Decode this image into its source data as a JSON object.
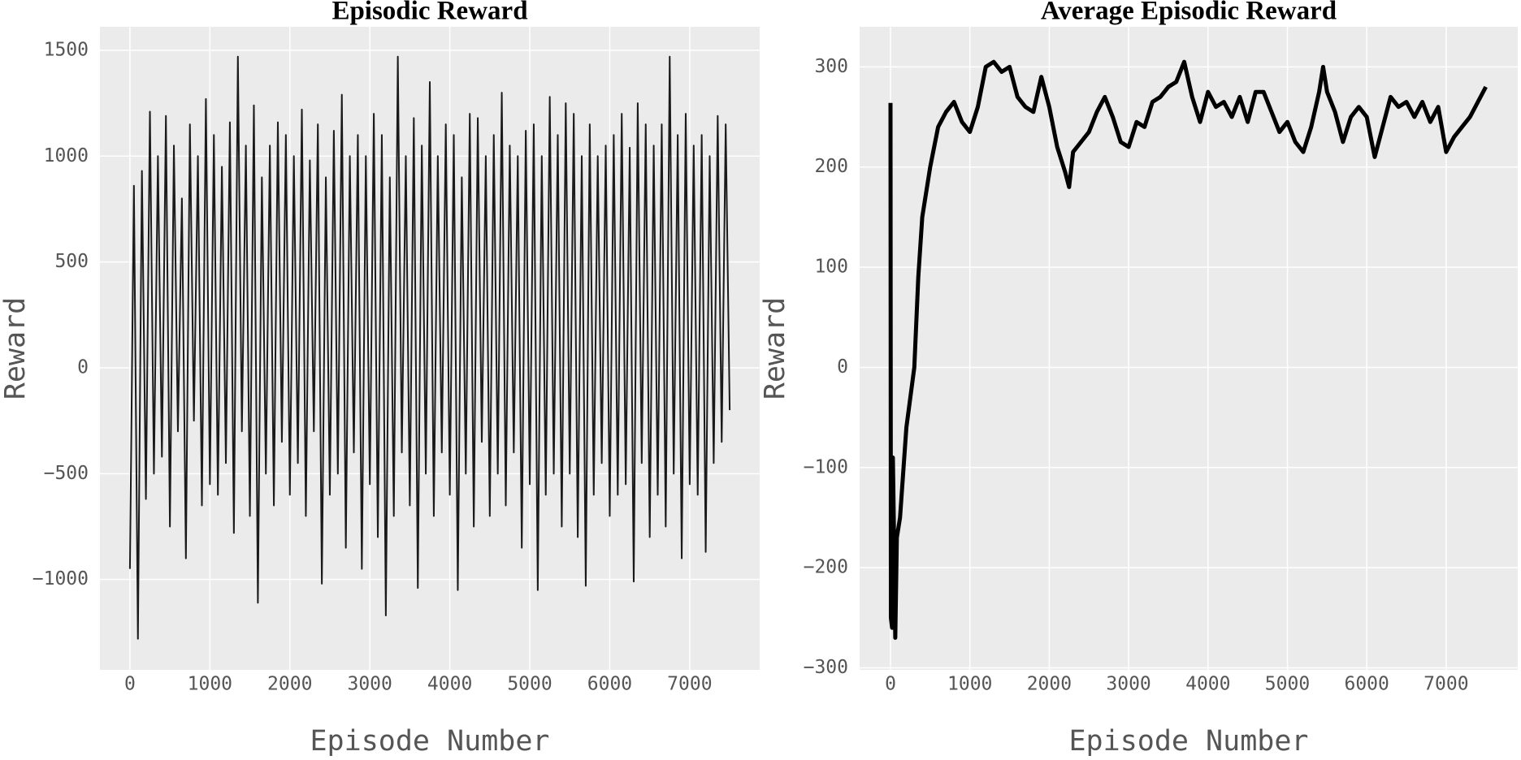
{
  "chart_data": [
    {
      "type": "line",
      "title": "Episodic Reward",
      "x_label": "Episode Number",
      "y_label": "Reward",
      "color": "#1a1a1a",
      "linewidth": 2,
      "grid": true,
      "xlim": [
        -375,
        7875
      ],
      "ylim": [
        -1427,
        1611
      ],
      "xticks": [
        0,
        1000,
        2000,
        3000,
        4000,
        5000,
        6000,
        7000
      ],
      "yticks": [
        {
          "value": -1000,
          "label": "−1000"
        },
        {
          "value": -500,
          "label": "−500"
        },
        0,
        500,
        1000,
        1500
      ],
      "x": [
        0,
        50,
        100,
        150,
        200,
        250,
        300,
        350,
        400,
        450,
        500,
        550,
        600,
        650,
        700,
        750,
        800,
        850,
        900,
        950,
        1000,
        1050,
        1100,
        1150,
        1200,
        1250,
        1300,
        1350,
        1400,
        1450,
        1500,
        1550,
        1600,
        1650,
        1700,
        1750,
        1800,
        1850,
        1900,
        1950,
        2000,
        2050,
        2100,
        2150,
        2200,
        2250,
        2300,
        2350,
        2400,
        2450,
        2500,
        2550,
        2600,
        2650,
        2700,
        2750,
        2800,
        2850,
        2900,
        2950,
        3000,
        3050,
        3100,
        3150,
        3200,
        3250,
        3300,
        3350,
        3400,
        3450,
        3500,
        3550,
        3600,
        3650,
        3700,
        3750,
        3800,
        3850,
        3900,
        3950,
        4000,
        4050,
        4100,
        4150,
        4200,
        4250,
        4300,
        4350,
        4400,
        4450,
        4500,
        4550,
        4600,
        4650,
        4700,
        4750,
        4800,
        4850,
        4900,
        4950,
        5000,
        5050,
        5100,
        5150,
        5200,
        5250,
        5300,
        5350,
        5400,
        5450,
        5500,
        5550,
        5600,
        5650,
        5700,
        5750,
        5800,
        5850,
        5900,
        5950,
        6000,
        6050,
        6100,
        6150,
        6200,
        6250,
        6300,
        6350,
        6400,
        6450,
        6500,
        6550,
        6600,
        6650,
        6700,
        6750,
        6800,
        6850,
        6900,
        6950,
        7000,
        7050,
        7100,
        7150,
        7200,
        7250,
        7300,
        7350,
        7400,
        7450,
        7500
      ],
      "values": [
        -950,
        860,
        -1280,
        930,
        -620,
        1210,
        -500,
        1000,
        -420,
        1190,
        -750,
        1050,
        -300,
        800,
        -900,
        1150,
        -250,
        1000,
        -650,
        1270,
        -550,
        1100,
        -600,
        950,
        -450,
        1160,
        -780,
        1470,
        -300,
        1050,
        -700,
        1240,
        -1110,
        900,
        -500,
        1050,
        -650,
        1160,
        -350,
        1100,
        -600,
        1000,
        -450,
        1220,
        -700,
        980,
        -300,
        1150,
        -1020,
        900,
        -600,
        1120,
        -500,
        1290,
        -850,
        1000,
        -400,
        1100,
        -950,
        1000,
        -550,
        1200,
        -800,
        1100,
        -1170,
        900,
        -700,
        1470,
        -400,
        1000,
        -650,
        1180,
        -1040,
        1050,
        -500,
        1350,
        -700,
        1000,
        -400,
        1150,
        -600,
        1100,
        -1050,
        900,
        -500,
        1200,
        -750,
        1180,
        -350,
        1000,
        -700,
        1100,
        -500,
        1300,
        -650,
        1050,
        -400,
        1000,
        -850,
        1120,
        -550,
        1150,
        -1050,
        1000,
        -600,
        1280,
        -500,
        1100,
        -750,
        1250,
        -500,
        1200,
        -800,
        1000,
        -1030,
        1150,
        -600,
        1000,
        -450,
        1050,
        -700,
        1100,
        -600,
        1200,
        -550,
        1040,
        -1010,
        1250,
        -450,
        1150,
        -800,
        1050,
        -600,
        1150,
        -750,
        1470,
        -500,
        1100,
        -900,
        1200,
        -550,
        1050,
        -600,
        1100,
        -870,
        1000,
        -450,
        1190,
        -350,
        1150,
        -200
      ]
    },
    {
      "type": "line",
      "title": "Average Episodic Reward",
      "x_label": "Episode Number",
      "y_label": "Reward",
      "color": "#000000",
      "linewidth": 5,
      "grid": true,
      "xlim": [
        -389,
        7902
      ],
      "ylim": [
        -302,
        340
      ],
      "xticks": [
        0,
        1000,
        2000,
        3000,
        4000,
        5000,
        6000,
        7000
      ],
      "yticks": [
        {
          "value": -300,
          "label": "−300"
        },
        {
          "value": -200,
          "label": "−200"
        },
        {
          "value": -100,
          "label": "−100"
        },
        0,
        100,
        200,
        300
      ],
      "x": [
        0,
        5,
        20,
        30,
        50,
        60,
        80,
        120,
        200,
        300,
        350,
        400,
        500,
        600,
        700,
        800,
        900,
        1000,
        1100,
        1200,
        1300,
        1400,
        1500,
        1600,
        1700,
        1800,
        1900,
        2000,
        2100,
        2200,
        2250,
        2300,
        2400,
        2500,
        2600,
        2700,
        2800,
        2900,
        3000,
        3100,
        3200,
        3300,
        3400,
        3500,
        3600,
        3700,
        3800,
        3900,
        4000,
        4100,
        4200,
        4300,
        4400,
        4500,
        4600,
        4700,
        4800,
        4900,
        5000,
        5100,
        5200,
        5300,
        5400,
        5450,
        5500,
        5600,
        5700,
        5800,
        5900,
        6000,
        6100,
        6200,
        6300,
        6400,
        6500,
        6600,
        6700,
        6800,
        6900,
        7000,
        7100,
        7200,
        7300,
        7400,
        7500
      ],
      "values": [
        264,
        -250,
        -260,
        -90,
        -200,
        -270,
        -170,
        -150,
        -60,
        0,
        90,
        150,
        200,
        240,
        255,
        265,
        245,
        235,
        260,
        300,
        305,
        295,
        300,
        270,
        260,
        255,
        290,
        260,
        220,
        195,
        180,
        215,
        225,
        235,
        255,
        270,
        250,
        225,
        220,
        245,
        240,
        265,
        270,
        280,
        285,
        305,
        270,
        245,
        275,
        260,
        265,
        250,
        270,
        245,
        275,
        275,
        255,
        235,
        245,
        225,
        215,
        240,
        275,
        300,
        275,
        255,
        225,
        250,
        260,
        250,
        210,
        240,
        270,
        260,
        265,
        250,
        265,
        245,
        260,
        215,
        230,
        240,
        250,
        265,
        280
      ]
    }
  ]
}
